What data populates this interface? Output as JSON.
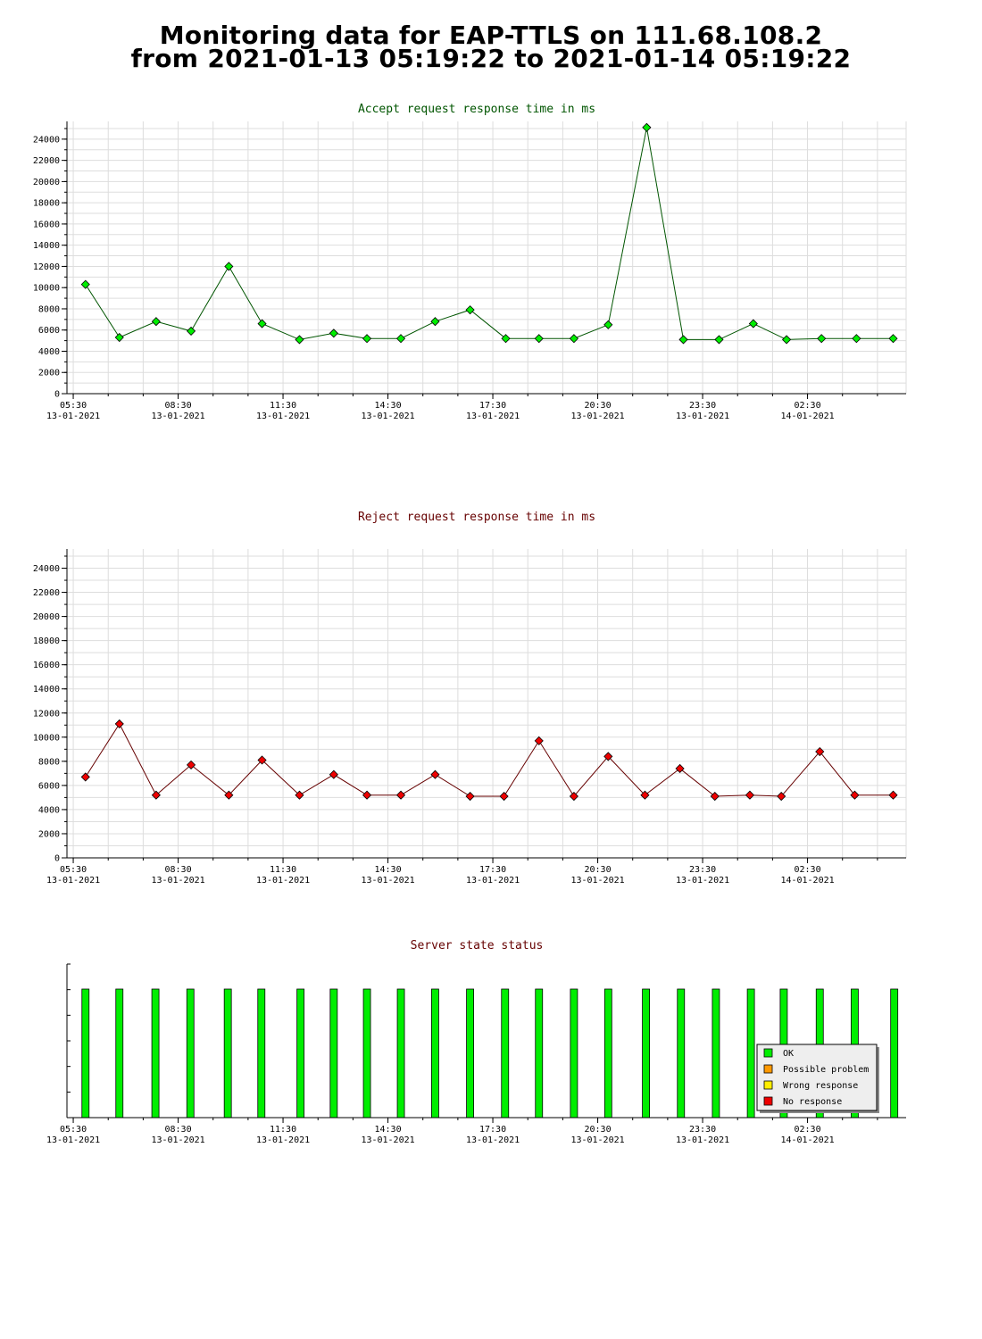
{
  "page": {
    "title_line1": "Monitoring data for EAP-TTLS on 111.68.108.2",
    "title_line2": "from 2021-01-13 05:19:22 to 2021-01-14 05:19:22"
  },
  "chart_data": [
    {
      "type": "line",
      "title": "Accept request response time in ms",
      "title_color": "#005500",
      "line_color": "#005500",
      "marker_color": "#00ee00",
      "xlabel": "",
      "ylabel": "",
      "x_range_hours": [
        5.32,
        29.32
      ],
      "ylim": [
        0,
        25000
      ],
      "y_ticks": [
        0,
        2000,
        4000,
        6000,
        8000,
        10000,
        12000,
        14000,
        16000,
        18000,
        20000,
        22000,
        24000
      ],
      "x_tick_labels": [
        {
          "time": "05:30",
          "date": "13-01-2021",
          "hour": 5.5
        },
        {
          "time": "08:30",
          "date": "13-01-2021",
          "hour": 8.5
        },
        {
          "time": "11:30",
          "date": "13-01-2021",
          "hour": 11.5
        },
        {
          "time": "14:30",
          "date": "13-01-2021",
          "hour": 14.5
        },
        {
          "time": "17:30",
          "date": "13-01-2021",
          "hour": 17.5
        },
        {
          "time": "20:30",
          "date": "13-01-2021",
          "hour": 20.5
        },
        {
          "time": "23:30",
          "date": "13-01-2021",
          "hour": 23.5
        },
        {
          "time": "02:30",
          "date": "14-01-2021",
          "hour": 26.5
        }
      ],
      "grid": true,
      "x": [
        5.85,
        6.82,
        7.87,
        8.87,
        9.95,
        10.9,
        11.97,
        12.95,
        13.9,
        14.87,
        15.85,
        16.85,
        17.87,
        18.82,
        19.82,
        20.8,
        21.9,
        22.95,
        23.97,
        24.95,
        25.9,
        26.9,
        27.9,
        28.95
      ],
      "values": [
        10300,
        5300,
        6800,
        5900,
        12000,
        6600,
        5100,
        5700,
        5200,
        5200,
        6800,
        7900,
        5200,
        5200,
        5200,
        6500,
        25100,
        5100,
        5100,
        6600,
        5100,
        5200,
        5200,
        5200
      ]
    },
    {
      "type": "line",
      "title": "Reject request response time in ms",
      "title_color": "#660000",
      "line_color": "#660000",
      "marker_color": "#ee0000",
      "xlabel": "",
      "ylabel": "",
      "x_range_hours": [
        5.32,
        29.32
      ],
      "ylim": [
        0,
        25000
      ],
      "y_ticks": [
        0,
        2000,
        4000,
        6000,
        8000,
        10000,
        12000,
        14000,
        16000,
        18000,
        20000,
        22000,
        24000
      ],
      "x_tick_labels": [
        {
          "time": "05:30",
          "date": "13-01-2021",
          "hour": 5.5
        },
        {
          "time": "08:30",
          "date": "13-01-2021",
          "hour": 8.5
        },
        {
          "time": "11:30",
          "date": "13-01-2021",
          "hour": 11.5
        },
        {
          "time": "14:30",
          "date": "13-01-2021",
          "hour": 14.5
        },
        {
          "time": "17:30",
          "date": "13-01-2021",
          "hour": 17.5
        },
        {
          "time": "20:30",
          "date": "13-01-2021",
          "hour": 20.5
        },
        {
          "time": "23:30",
          "date": "13-01-2021",
          "hour": 23.5
        },
        {
          "time": "02:30",
          "date": "14-01-2021",
          "hour": 26.5
        }
      ],
      "grid": true,
      "x": [
        5.85,
        6.82,
        7.87,
        8.87,
        9.95,
        10.9,
        11.97,
        12.95,
        13.9,
        14.87,
        15.85,
        16.85,
        17.82,
        18.82,
        19.82,
        20.8,
        21.85,
        22.85,
        23.85,
        24.85,
        25.75,
        26.85,
        27.85,
        28.95
      ],
      "values": [
        6700,
        11100,
        5200,
        7700,
        5200,
        8100,
        5200,
        6900,
        5200,
        5200,
        6900,
        5100,
        5100,
        9700,
        5100,
        8400,
        5200,
        7400,
        5100,
        5200,
        5100,
        8800,
        5200,
        5200
      ]
    },
    {
      "type": "bar",
      "title": "Server state status",
      "title_color": "#660000",
      "x_range_hours": [
        5.32,
        29.32
      ],
      "x_tick_labels": [
        {
          "time": "05:30",
          "date": "13-01-2021",
          "hour": 5.5
        },
        {
          "time": "08:30",
          "date": "13-01-2021",
          "hour": 8.5
        },
        {
          "time": "11:30",
          "date": "13-01-2021",
          "hour": 11.5
        },
        {
          "time": "14:30",
          "date": "13-01-2021",
          "hour": 14.5
        },
        {
          "time": "17:30",
          "date": "13-01-2021",
          "hour": 17.5
        },
        {
          "time": "20:30",
          "date": "13-01-2021",
          "hour": 20.5
        },
        {
          "time": "23:30",
          "date": "13-01-2021",
          "hour": 23.5
        },
        {
          "time": "02:30",
          "date": "14-01-2021",
          "hour": 26.5
        }
      ],
      "x": [
        5.85,
        6.82,
        7.85,
        8.85,
        9.92,
        10.88,
        12.0,
        12.95,
        13.9,
        14.87,
        15.85,
        16.85,
        17.85,
        18.82,
        19.82,
        20.8,
        21.88,
        22.88,
        23.88,
        24.88,
        25.82,
        26.85,
        27.85,
        28.98
      ],
      "states": [
        "OK",
        "OK",
        "OK",
        "OK",
        "OK",
        "OK",
        "OK",
        "OK",
        "OK",
        "OK",
        "OK",
        "OK",
        "OK",
        "OK",
        "OK",
        "OK",
        "OK",
        "OK",
        "OK",
        "OK",
        "OK",
        "OK",
        "OK",
        "OK"
      ],
      "legend": [
        {
          "label": "OK",
          "color": "#00ee00"
        },
        {
          "label": "Possible problem",
          "color": "#ff9900"
        },
        {
          "label": "Wrong response",
          "color": "#ffee00"
        },
        {
          "label": "No response",
          "color": "#ee0000"
        }
      ],
      "legend_position": "bottom-right"
    }
  ]
}
